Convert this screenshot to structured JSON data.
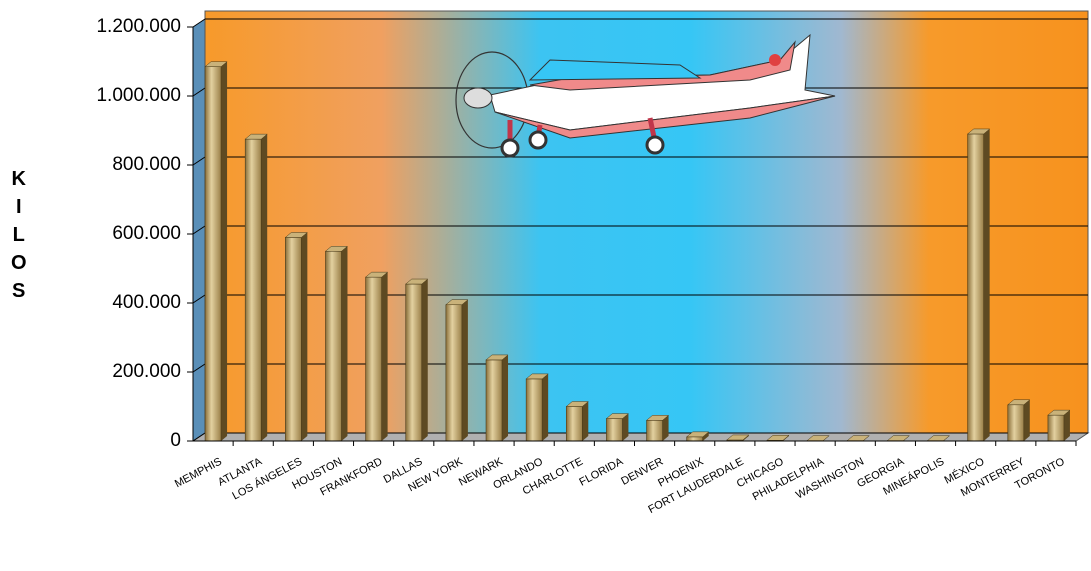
{
  "chart_data": {
    "type": "bar",
    "y_label": "KILOS",
    "categories": [
      "MEMPHIS",
      "ATLANTA",
      "LOS ÁNGELES",
      "HOUSTON",
      "FRANKFORD",
      "DALLAS",
      "NEW YORK",
      "NEWARK",
      "ORLANDO",
      "CHARLOTTE",
      "FLORIDA",
      "DENVER",
      "PHOENIX",
      "FORT LAUDERDALE",
      "CHICAGO",
      "PHILADELPHIA",
      "WASHINGTON",
      "GEORGIA",
      "MINEÁPOLIS",
      "MÉXICO",
      "MONTERREY",
      "TORONTO"
    ],
    "values": [
      1085000,
      875000,
      590000,
      550000,
      475000,
      455000,
      395000,
      235000,
      180000,
      100000,
      65000,
      60000,
      12000,
      3000,
      2000,
      1000,
      1000,
      1000,
      1000,
      890000,
      105000,
      75000
    ],
    "color": "#c9b27a",
    "ylim": [
      0,
      1200000
    ],
    "yticks": [
      0,
      {
        "value": 200000,
        "label": "200.000"
      },
      {
        "value": 400000,
        "label": "400.000"
      },
      {
        "value": 600000,
        "label": "600.000"
      },
      {
        "value": 800000,
        "label": "800.000"
      },
      {
        "value": 1000000,
        "label": "1.000.000"
      },
      {
        "value": 1200000,
        "label": "1.200.000"
      }
    ],
    "grid": true
  }
}
